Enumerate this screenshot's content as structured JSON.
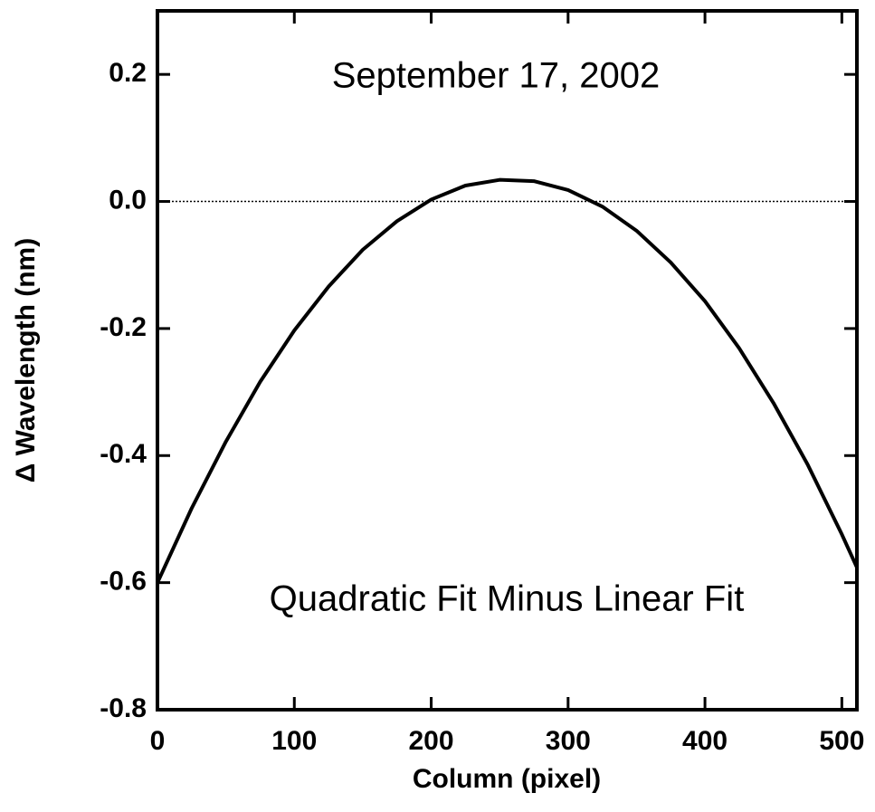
{
  "chart_data": {
    "type": "line",
    "title": "September 17, 2002",
    "annotation": "Quadratic Fit Minus Linear Fit",
    "x_label": "Column (pixel)",
    "y_label": "Δ Wavelength (nm)",
    "x": [
      0,
      25,
      50,
      75,
      100,
      125,
      150,
      175,
      200,
      225,
      250,
      275,
      300,
      325,
      350,
      375,
      400,
      425,
      450,
      475,
      500,
      511
    ],
    "series": [
      {
        "color": "#000000",
        "values": [
          -0.6,
          -0.483,
          -0.378,
          -0.284,
          -0.203,
          -0.134,
          -0.076,
          -0.031,
          0.003,
          0.025,
          0.034,
          0.032,
          0.018,
          -0.008,
          -0.046,
          -0.096,
          -0.157,
          -0.231,
          -0.317,
          -0.414,
          -0.524,
          -0.576
        ]
      }
    ],
    "xlim": [
      0,
      511
    ],
    "ylim": [
      -0.8,
      0.3
    ],
    "xticks": [
      0,
      100,
      200,
      300,
      400,
      500
    ],
    "yticks": [
      -0.8,
      -0.6,
      -0.4,
      -0.2,
      {
        "value": 0,
        "label": "0.0"
      },
      0.2
    ],
    "reference_line": 0
  }
}
